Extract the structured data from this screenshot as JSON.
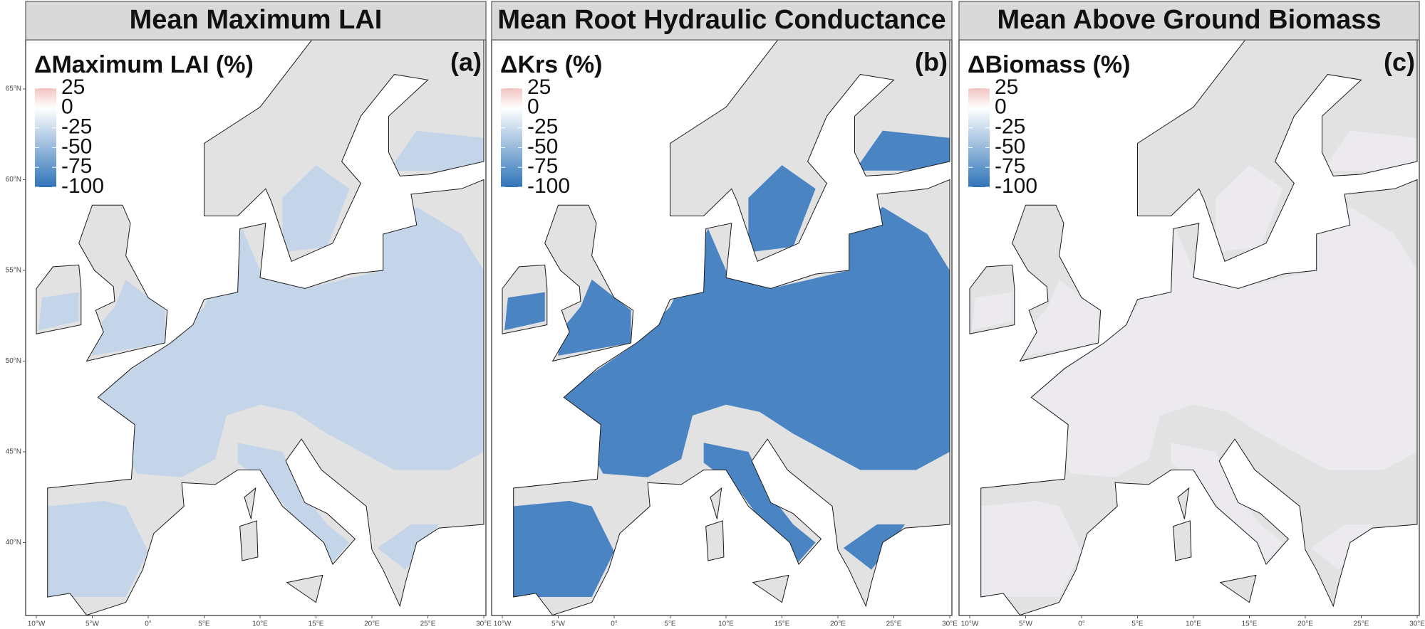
{
  "panels": [
    {
      "title": "Mean Maximum LAI",
      "letter": "(a)",
      "legend_title": "ΔMaximum LAI (%)",
      "legend_ticks": [
        25,
        0,
        -25,
        -50,
        -75,
        -100
      ],
      "fill_color": "#c4d5ea"
    },
    {
      "title": "Mean Root Hydraulic Conductance",
      "letter": "(b)",
      "legend_title": "ΔKrs (%)",
      "legend_ticks": [
        25,
        0,
        -25,
        -50,
        -75,
        -100
      ],
      "fill_color": "#4b84c3"
    },
    {
      "title": "Mean Above Ground Biomass",
      "letter": "(c)",
      "legend_title": "ΔBiomass (%)",
      "legend_ticks": [
        25,
        0,
        -25,
        -50,
        -75,
        -100
      ],
      "fill_color": "#eceaef"
    }
  ],
  "colorbar": {
    "lim": [
      -100,
      25
    ],
    "colors": [
      "#2f74b8",
      "#ffffff",
      "#f2c4c2"
    ]
  },
  "lat_labels": [
    "65°N",
    "60°N",
    "55°N",
    "50°N",
    "45°N",
    "40°N"
  ],
  "lon_labels": [
    "10°W",
    "5°W",
    "0°",
    "5°E",
    "10°E",
    "15°E",
    "20°E",
    "25°E",
    "30°E"
  ]
}
